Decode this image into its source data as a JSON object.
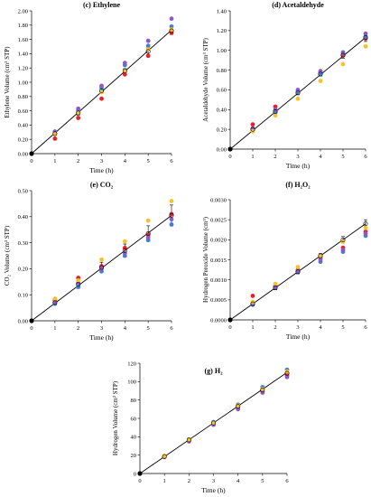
{
  "colors": {
    "red": "#e8202a",
    "blue": "#3f7fd4",
    "purple": "#8e58c7",
    "yellow": "#f6c22b",
    "axis": "#000000"
  },
  "chart_data": [
    {
      "type": "scatter",
      "title": "(c) Ethylene",
      "xlabel": "Time (h)",
      "ylabel": "Ethylene Volume (cm³ STP)",
      "xlim": [
        0,
        6
      ],
      "ylim": [
        0,
        2
      ],
      "xticks": [
        "0",
        "1",
        "2",
        "3",
        "4",
        "5",
        "6"
      ],
      "yticks": [
        "0.00",
        "0.20",
        "0.40",
        "0.60",
        "0.80",
        "1.00",
        "1.20",
        "1.40",
        "1.60",
        "1.80",
        "2.00"
      ],
      "x": [
        0,
        1,
        2,
        3,
        4,
        5,
        6
      ],
      "series": [
        {
          "color": "red",
          "values": [
            0,
            0.21,
            0.5,
            0.77,
            1.11,
            1.37,
            1.69
          ]
        },
        {
          "color": "blue",
          "values": [
            0,
            0.28,
            0.6,
            0.92,
            1.24,
            1.51,
            1.78
          ]
        },
        {
          "color": "purple",
          "values": [
            0,
            0.31,
            0.63,
            0.95,
            1.27,
            1.58,
            1.89
          ]
        },
        {
          "color": "yellow",
          "values": [
            0,
            0.27,
            0.57,
            0.86,
            1.16,
            1.46,
            1.74
          ]
        }
      ],
      "fit": [
        [
          0,
          0
        ],
        [
          6,
          1.73
        ]
      ],
      "mean": [
        0,
        0.28,
        0.57,
        0.88,
        1.16,
        1.43,
        1.72
      ],
      "err": [
        0,
        0.02,
        0.03,
        0.03,
        0.03,
        0.05,
        0.05
      ]
    },
    {
      "type": "scatter",
      "title": "(d) Acetaldehyde",
      "xlabel": "Time (h)",
      "ylabel": "Acetaldehyde Volume (cm³ STP)",
      "xlim": [
        0,
        6
      ],
      "ylim": [
        0,
        1.4
      ],
      "xticks": [
        "0",
        "1",
        "2",
        "3",
        "4",
        "5",
        "6"
      ],
      "yticks": [
        "0.00",
        "0.20",
        "0.40",
        "0.60",
        "0.80",
        "1.00",
        "1.20",
        "1.40"
      ],
      "x": [
        0,
        1,
        2,
        3,
        4,
        5,
        6
      ],
      "series": [
        {
          "color": "red",
          "values": [
            0,
            0.25,
            0.43,
            0.58,
            0.78,
            0.95,
            1.12
          ]
        },
        {
          "color": "blue",
          "values": [
            0,
            0.19,
            0.37,
            0.58,
            0.76,
            0.98,
            1.14
          ]
        },
        {
          "color": "purple",
          "values": [
            0,
            0.21,
            0.4,
            0.6,
            0.79,
            0.97,
            1.17
          ]
        },
        {
          "color": "yellow",
          "values": [
            0,
            0.18,
            0.34,
            0.51,
            0.69,
            0.86,
            1.04
          ]
        }
      ],
      "fit": [
        [
          0,
          0
        ],
        [
          6,
          1.13
        ]
      ],
      "mean": [
        0,
        0.2,
        0.38,
        0.57,
        0.76,
        0.95,
        1.13
      ],
      "err": [
        0,
        0.02,
        0.02,
        0.02,
        0.02,
        0.03,
        0.04
      ]
    },
    {
      "type": "scatter",
      "title": "(e) CO₂",
      "xlabel": "Time (h)",
      "ylabel": "CO₂ Volume (cm³ STP)",
      "xlim": [
        0,
        6
      ],
      "ylim": [
        0,
        0.5
      ],
      "xticks": [
        "0",
        "1",
        "2",
        "3",
        "4",
        "5",
        "6"
      ],
      "yticks": [
        "0.00",
        "0.10",
        "0.20",
        "0.30",
        "0.40",
        "0.50"
      ],
      "x": [
        0,
        1,
        2,
        3,
        4,
        5,
        6
      ],
      "series": [
        {
          "color": "red",
          "values": [
            0,
            0.08,
            0.165,
            0.21,
            0.28,
            0.33,
            0.41
          ]
        },
        {
          "color": "blue",
          "values": [
            0,
            0.065,
            0.13,
            0.19,
            0.25,
            0.31,
            0.37
          ]
        },
        {
          "color": "purple",
          "values": [
            0,
            0.07,
            0.145,
            0.2,
            0.26,
            0.32,
            0.39
          ]
        },
        {
          "color": "yellow",
          "values": [
            0,
            0.085,
            0.155,
            0.235,
            0.305,
            0.385,
            0.46
          ]
        }
      ],
      "fit": [
        [
          0,
          0
        ],
        [
          6,
          0.405
        ]
      ],
      "mean": [
        0,
        0.07,
        0.14,
        0.205,
        0.27,
        0.335,
        0.405
      ],
      "err": [
        0,
        0.01,
        0.015,
        0.02,
        0.025,
        0.03,
        0.04
      ]
    },
    {
      "type": "scatter",
      "title": "(f) H₂O₂",
      "xlabel": "Time (h)",
      "ylabel": "Hydrogen Peroxide Volume (cm³)",
      "xlim": [
        0,
        6
      ],
      "ylim": [
        0,
        0.003
      ],
      "xticks": [
        "0",
        "1",
        "2",
        "3",
        "4",
        "5",
        "6"
      ],
      "yticks": [
        "0.0000",
        "0.0005",
        "0.0010",
        "0.0015",
        "0.0020",
        "0.0025",
        "0.0030"
      ],
      "x": [
        0,
        1,
        2,
        3,
        4,
        5,
        6
      ],
      "series": [
        {
          "color": "red",
          "values": [
            0,
            0.0006,
            0.00085,
            0.00125,
            0.00155,
            0.0018,
            0.0022
          ]
        },
        {
          "color": "blue",
          "values": [
            0,
            0.00038,
            0.0008,
            0.0012,
            0.00145,
            0.0017,
            0.0021
          ]
        },
        {
          "color": "purple",
          "values": [
            0,
            0.00042,
            0.00082,
            0.00122,
            0.0015,
            0.00175,
            0.00215
          ]
        },
        {
          "color": "yellow",
          "values": [
            0,
            0.00045,
            0.0009,
            0.00132,
            0.0016,
            0.00195,
            0.0023
          ]
        }
      ],
      "fit": [
        [
          0,
          0
        ],
        [
          6,
          0.0024
        ]
      ],
      "mean": [
        0,
        0.0004,
        0.0008,
        0.0012,
        0.0016,
        0.002,
        0.0024
      ],
      "err": [
        0,
        5e-05,
        5e-05,
        5e-05,
        6e-05,
        8e-05,
        0.0001
      ]
    },
    {
      "type": "scatter",
      "title": "(g) H₂",
      "xlabel": "Time (h)",
      "ylabel": "Hydrogen Volume (cm³ STP)",
      "xlim": [
        0,
        6
      ],
      "ylim": [
        0,
        120
      ],
      "xticks": [
        "0",
        "1",
        "2",
        "3",
        "4",
        "5",
        "6"
      ],
      "yticks": [
        "0",
        "20",
        "40",
        "60",
        "80",
        "100",
        "120"
      ],
      "x": [
        0,
        1,
        2,
        3,
        4,
        5,
        6
      ],
      "series": [
        {
          "color": "red",
          "values": [
            0,
            18,
            36,
            54,
            72,
            89,
            107
          ]
        },
        {
          "color": "blue",
          "values": [
            0,
            19,
            37,
            56,
            75,
            94,
            113
          ]
        },
        {
          "color": "purple",
          "values": [
            0,
            18,
            35,
            53,
            70,
            88,
            105
          ]
        },
        {
          "color": "yellow",
          "values": [
            0,
            19,
            37,
            55,
            74,
            92,
            111
          ]
        }
      ],
      "fit": [
        [
          0,
          0
        ],
        [
          6,
          110
        ]
      ],
      "mean": [
        0,
        18.5,
        36.5,
        55,
        73,
        91,
        109
      ],
      "err": [
        0,
        1,
        1,
        1,
        1.5,
        1.5,
        2
      ]
    }
  ]
}
